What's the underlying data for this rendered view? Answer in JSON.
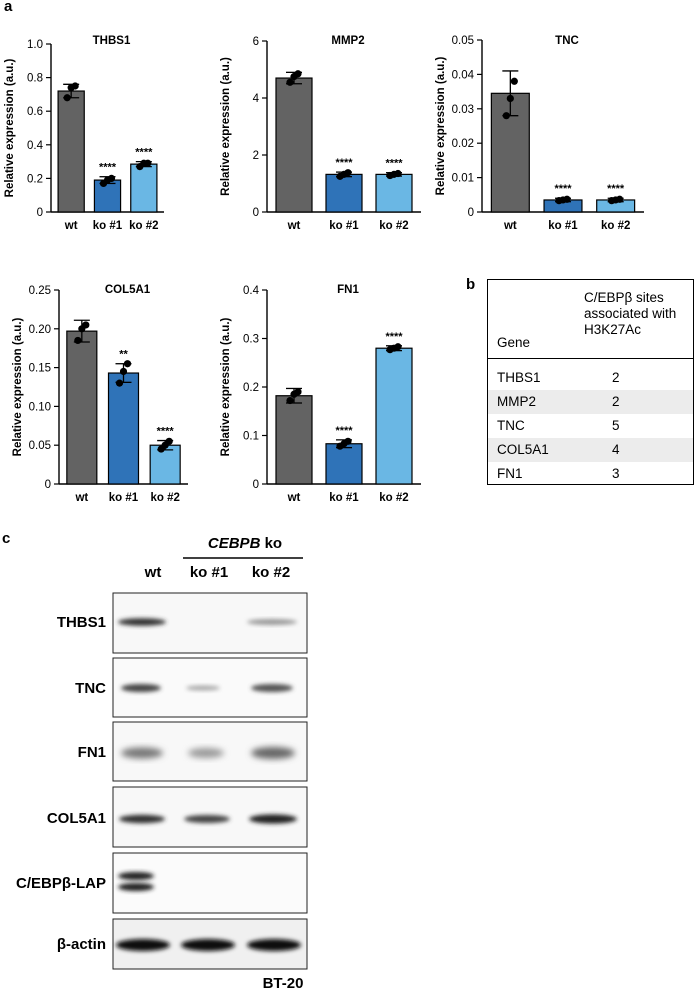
{
  "panels": {
    "a": "a",
    "b": "b",
    "c": "c"
  },
  "yaxis_label": "Relative expression (a.u.)",
  "chart_data": [
    {
      "type": "bar",
      "title": "THBS1",
      "categories": [
        "wt",
        "ko #1",
        "ko #2"
      ],
      "values": [
        0.72,
        0.19,
        0.285
      ],
      "errors": [
        0.04,
        0.02,
        0.015
      ],
      "points": [
        [
          0.68,
          0.74,
          0.75
        ],
        [
          0.17,
          0.19,
          0.2
        ],
        [
          0.27,
          0.29,
          0.29
        ]
      ],
      "significance": [
        "",
        "****",
        "****"
      ],
      "ylim": [
        0,
        1.0
      ],
      "yticks": [
        0,
        0.2,
        0.4,
        0.6,
        0.8,
        1.0
      ],
      "ytick_labels": [
        "0",
        "0.2",
        "0.4",
        "0.6",
        "0.8",
        "1.0"
      ],
      "colors": [
        "#636363",
        "#2f73b8",
        "#6ab7e4"
      ],
      "ylabel": "Relative expression (a.u.)"
    },
    {
      "type": "bar",
      "title": "MMP2",
      "categories": [
        "wt",
        "ko #1",
        "ko #2"
      ],
      "values": [
        4.7,
        1.32,
        1.32
      ],
      "errors": [
        0.2,
        0.08,
        0.06
      ],
      "points": [
        [
          4.55,
          4.75,
          4.85
        ],
        [
          1.25,
          1.32,
          1.38
        ],
        [
          1.28,
          1.32,
          1.35
        ]
      ],
      "significance": [
        "",
        "****",
        "****"
      ],
      "ylim": [
        0,
        6
      ],
      "yticks": [
        0,
        2,
        4,
        6
      ],
      "ytick_labels": [
        "0",
        "2",
        "4",
        "6"
      ],
      "colors": [
        "#636363",
        "#2f73b8",
        "#6ab7e4"
      ],
      "ylabel": "Relative expression (a.u.)"
    },
    {
      "type": "bar",
      "title": "TNC",
      "categories": [
        "wt",
        "ko #1",
        "ko #2"
      ],
      "values": [
        0.0345,
        0.0035,
        0.0035
      ],
      "errors": [
        0.0065,
        0.0005,
        0.0005
      ],
      "points": [
        [
          0.028,
          0.033,
          0.038
        ],
        [
          0.0033,
          0.0035,
          0.0037
        ],
        [
          0.0033,
          0.0035,
          0.0037
        ]
      ],
      "significance": [
        "",
        "****",
        "****"
      ],
      "ylim": [
        0,
        0.05
      ],
      "yticks": [
        0,
        0.01,
        0.02,
        0.03,
        0.04,
        0.05
      ],
      "ytick_labels": [
        "0",
        "0.01",
        "0.02",
        "0.03",
        "0.04",
        "0.05"
      ],
      "colors": [
        "#636363",
        "#2f73b8",
        "#6ab7e4"
      ],
      "ylabel": "Relative expression (a.u.)"
    },
    {
      "type": "bar",
      "title": "COL5A1",
      "categories": [
        "wt",
        "ko #1",
        "ko #2"
      ],
      "values": [
        0.197,
        0.143,
        0.05
      ],
      "errors": [
        0.014,
        0.012,
        0.006
      ],
      "points": [
        [
          0.185,
          0.2,
          0.205
        ],
        [
          0.13,
          0.145,
          0.155
        ],
        [
          0.045,
          0.05,
          0.055
        ]
      ],
      "significance": [
        "",
        "**",
        "****"
      ],
      "ylim": [
        0,
        0.25
      ],
      "yticks": [
        0,
        0.05,
        0.1,
        0.15,
        0.2,
        0.25
      ],
      "ytick_labels": [
        "0",
        "0.05",
        "0.10",
        "0.15",
        "0.20",
        "0.25"
      ],
      "colors": [
        "#636363",
        "#2f73b8",
        "#6ab7e4"
      ],
      "ylabel": "Relative expression (a.u.)"
    },
    {
      "type": "bar",
      "title": "FN1",
      "categories": [
        "wt",
        "ko #1",
        "ko #2"
      ],
      "values": [
        0.182,
        0.083,
        0.28
      ],
      "errors": [
        0.015,
        0.008,
        0.005
      ],
      "points": [
        [
          0.172,
          0.185,
          0.19
        ],
        [
          0.078,
          0.083,
          0.088
        ],
        [
          0.277,
          0.28,
          0.283
        ]
      ],
      "significance": [
        "",
        "****",
        "****"
      ],
      "ylim": [
        0,
        0.4
      ],
      "yticks": [
        0,
        0.1,
        0.2,
        0.3,
        0.4
      ],
      "ytick_labels": [
        "0",
        "0.1",
        "0.2",
        "0.3",
        "0.4"
      ],
      "colors": [
        "#636363",
        "#2f73b8",
        "#6ab7e4"
      ],
      "ylabel": "Relative expression (a.u.)"
    }
  ],
  "table": {
    "header_gene": "Gene",
    "header_sites": [
      "C/EBPβ sites",
      "associated with",
      "H3K27Ac"
    ],
    "rows": [
      {
        "gene": "THBS1",
        "count": "2"
      },
      {
        "gene": "MMP2",
        "count": "2"
      },
      {
        "gene": "TNC",
        "count": "5"
      },
      {
        "gene": "COL5A1",
        "count": "4"
      },
      {
        "gene": "FN1",
        "count": "3"
      }
    ]
  },
  "blot": {
    "group_label_italic": "CEBPB",
    "group_label_rest": " ko",
    "lanes": [
      "wt",
      "ko #1",
      "ko #2"
    ],
    "rows": [
      "THBS1",
      "TNC",
      "FN1",
      "COL5A1",
      "C/EBPβ-LAP",
      "β-actin"
    ],
    "cell_line": "BT-20"
  }
}
